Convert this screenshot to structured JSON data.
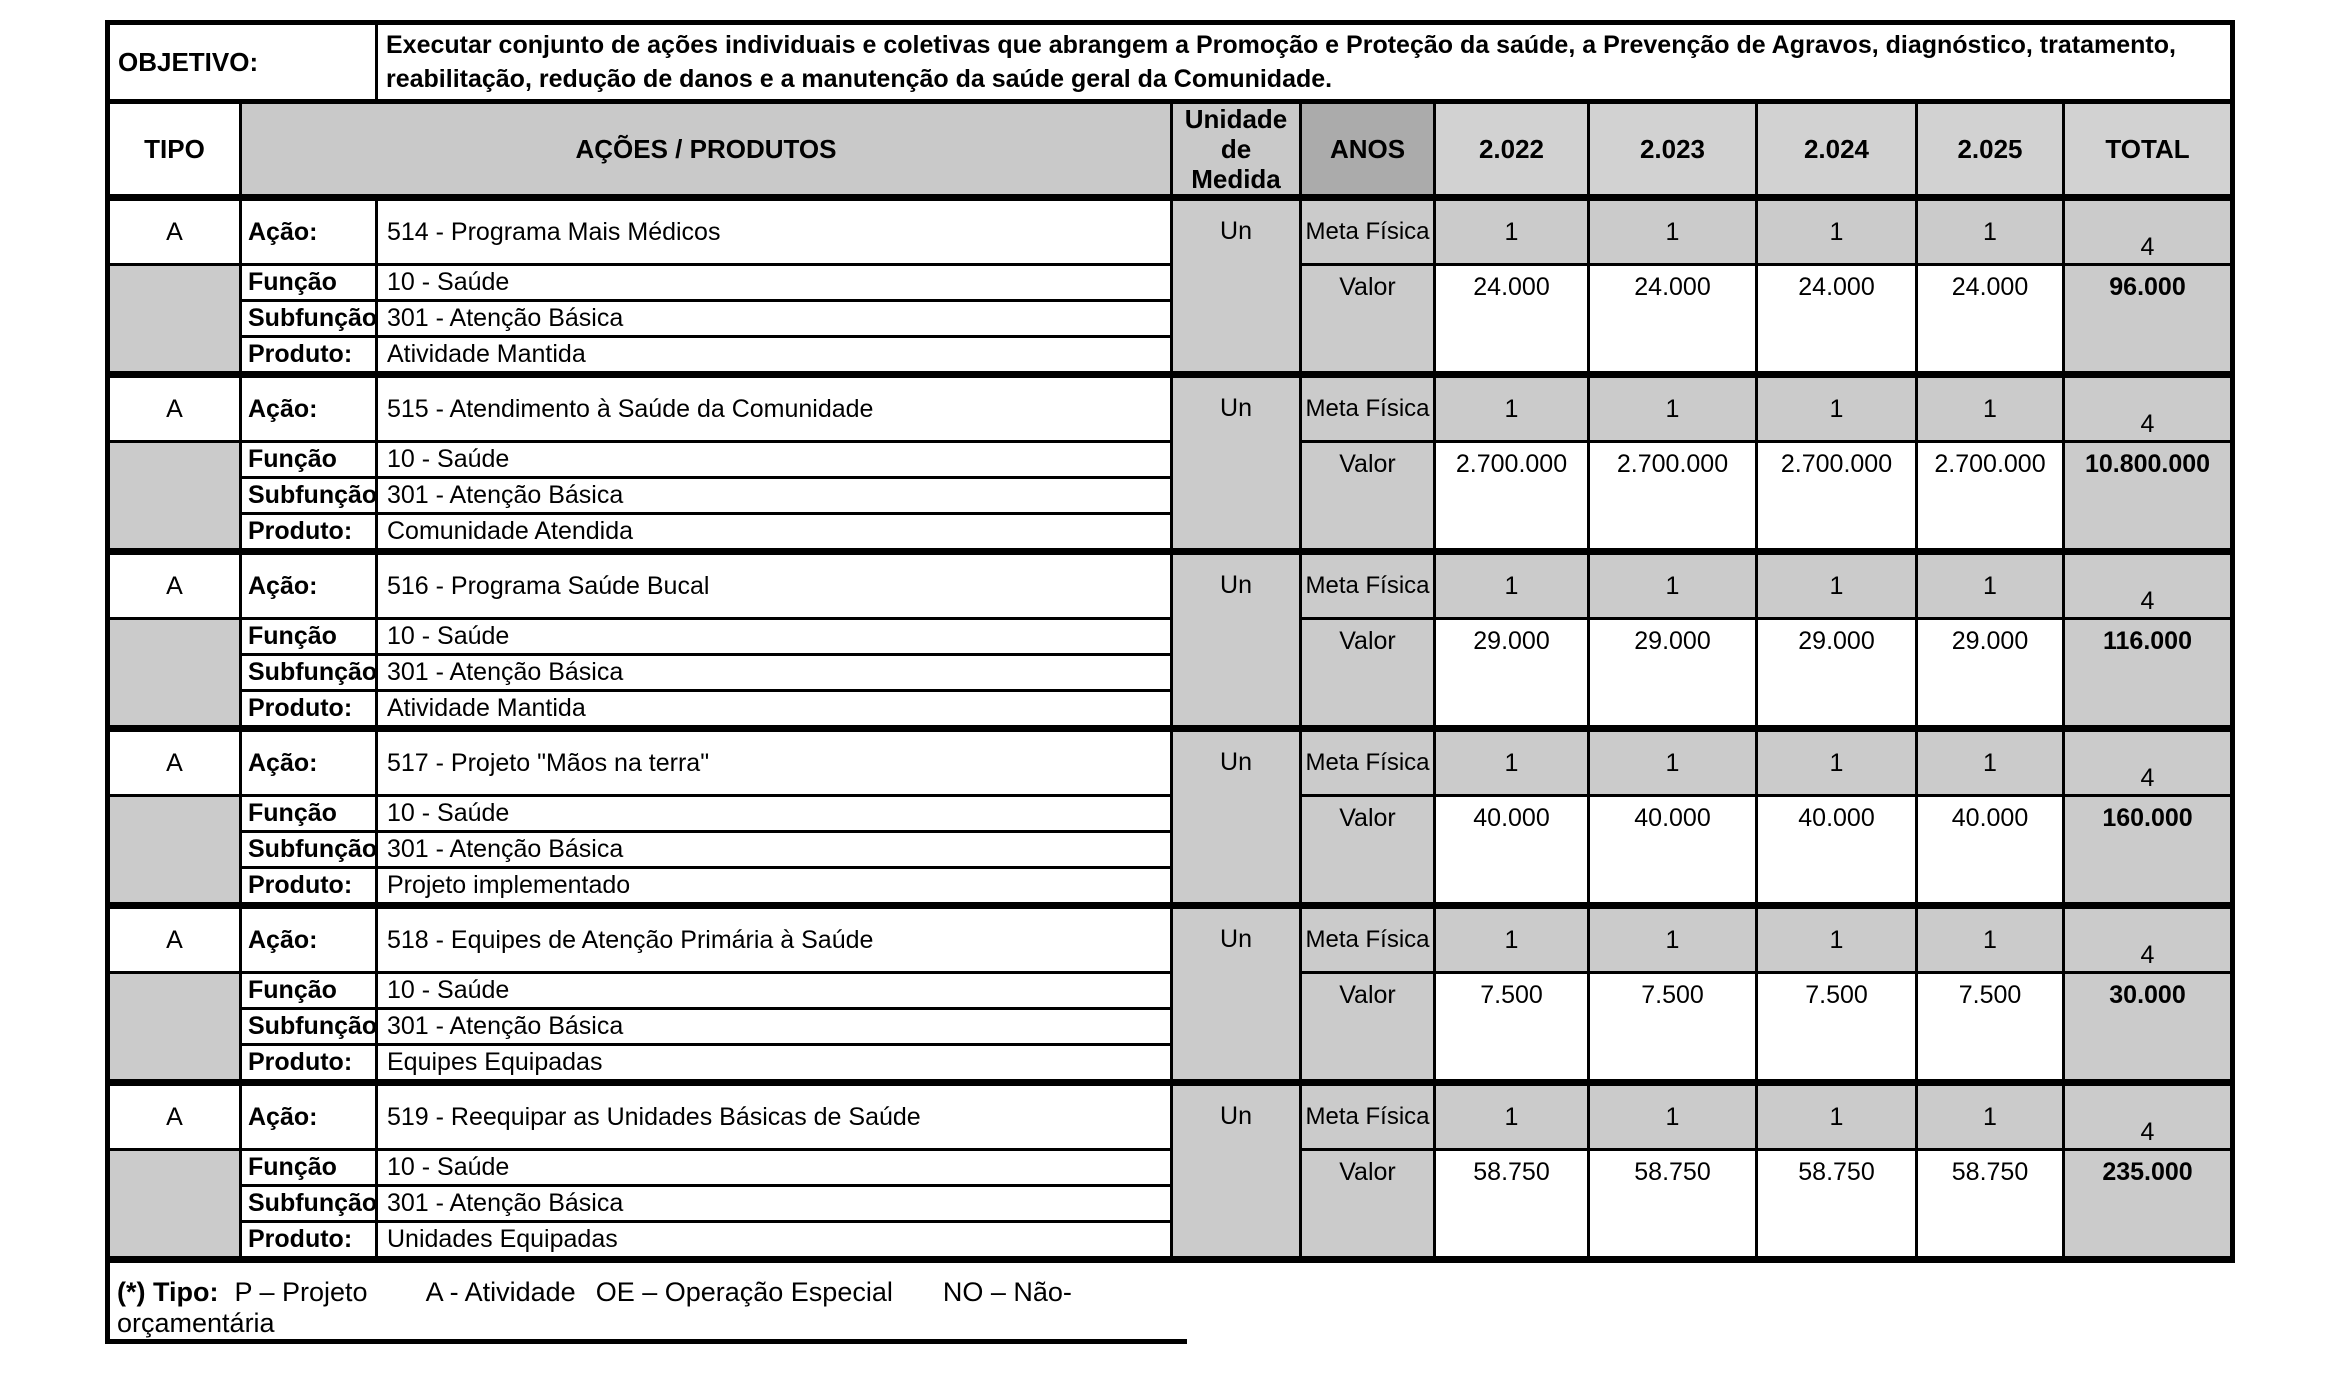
{
  "objetivo": {
    "label": "OBJETIVO:",
    "text": "Executar conjunto de ações individuais e coletivas que abrangem a Promoção e Proteção da saúde, a Prevenção de Agravos, diagnóstico, tratamento, reabilitação, redução de danos e a manutenção da saúde geral da Comunidade."
  },
  "header": {
    "tipo": "TIPO",
    "acoes_produtos": "AÇÕES / PRODUTOS",
    "unidade_line1": "Unidade",
    "unidade_line2": "de Medida",
    "anos": "ANOS",
    "years": [
      "2.022",
      "2.023",
      "2.024",
      "2.025"
    ],
    "total": "TOTAL"
  },
  "labels": {
    "acao": "Ação:",
    "funcao": "Função",
    "subfuncao": "Subfunção",
    "produto": "Produto:",
    "meta_fisica": "Meta Física",
    "valor": "Valor"
  },
  "blocks": [
    {
      "tipo": "A",
      "acao": "514 - Programa Mais Médicos",
      "funcao": "10 - Saúde",
      "subfuncao": "301 - Atenção Básica",
      "produto": "Atividade Mantida",
      "unidade": "Un",
      "meta_fisica": [
        "1",
        "1",
        "1",
        "1"
      ],
      "meta_total": "4",
      "valores": [
        "24.000",
        "24.000",
        "24.000",
        "24.000"
      ],
      "valor_total": "96.000"
    },
    {
      "tipo": "A",
      "acao": "515 - Atendimento à Saúde da Comunidade",
      "funcao": "10 - Saúde",
      "subfuncao": "301 - Atenção Básica",
      "produto": "Comunidade Atendida",
      "unidade": "Un",
      "meta_fisica": [
        "1",
        "1",
        "1",
        "1"
      ],
      "meta_total": "4",
      "valores": [
        "2.700.000",
        "2.700.000",
        "2.700.000",
        "2.700.000"
      ],
      "valor_total": "10.800.000"
    },
    {
      "tipo": "A",
      "acao": "516 - Programa Saúde Bucal",
      "funcao": "10 - Saúde",
      "subfuncao": "301 - Atenção Básica",
      "produto": "Atividade Mantida",
      "unidade": "Un",
      "meta_fisica": [
        "1",
        "1",
        "1",
        "1"
      ],
      "meta_total": "4",
      "valores": [
        "29.000",
        "29.000",
        "29.000",
        "29.000"
      ],
      "valor_total": "116.000"
    },
    {
      "tipo": "A",
      "acao": "517 - Projeto \"Mãos na terra\"",
      "funcao": "10 - Saúde",
      "subfuncao": "301 - Atenção Básica",
      "produto": "Projeto implementado",
      "unidade": "Un",
      "meta_fisica": [
        "1",
        "1",
        "1",
        "1"
      ],
      "meta_total": "4",
      "valores": [
        "40.000",
        "40.000",
        "40.000",
        "40.000"
      ],
      "valor_total": "160.000"
    },
    {
      "tipo": "A",
      "acao": "518 - Equipes de Atenção Primária à Saúde",
      "funcao": "10 - Saúde",
      "subfuncao": "301 - Atenção Básica",
      "produto": "Equipes Equipadas",
      "unidade": "Un",
      "meta_fisica": [
        "1",
        "1",
        "1",
        "1"
      ],
      "meta_total": "4",
      "valores": [
        "7.500",
        "7.500",
        "7.500",
        "7.500"
      ],
      "valor_total": "30.000"
    },
    {
      "tipo": "A",
      "acao": "519 - Reequipar as Unidades Básicas de Saúde",
      "funcao": "10 - Saúde",
      "subfuncao": "301 - Atenção Básica",
      "produto": "Unidades Equipadas",
      "unidade": "Un",
      "meta_fisica": [
        "1",
        "1",
        "1",
        "1"
      ],
      "meta_total": "4",
      "valores": [
        "58.750",
        "58.750",
        "58.750",
        "58.750"
      ],
      "valor_total": "235.000"
    }
  ],
  "footer": {
    "label": "(*)  Tipo:",
    "items": [
      "P – Projeto",
      "A - Atividade",
      "OE – Operação Especial",
      "NO – Não-orçamentária"
    ]
  },
  "colors": {
    "cell_gray": "#cbcbcb",
    "anos_header_gray": "#ababab",
    "year_header_gray": "#d2d2d2",
    "border": "#000000",
    "background": "#ffffff"
  }
}
